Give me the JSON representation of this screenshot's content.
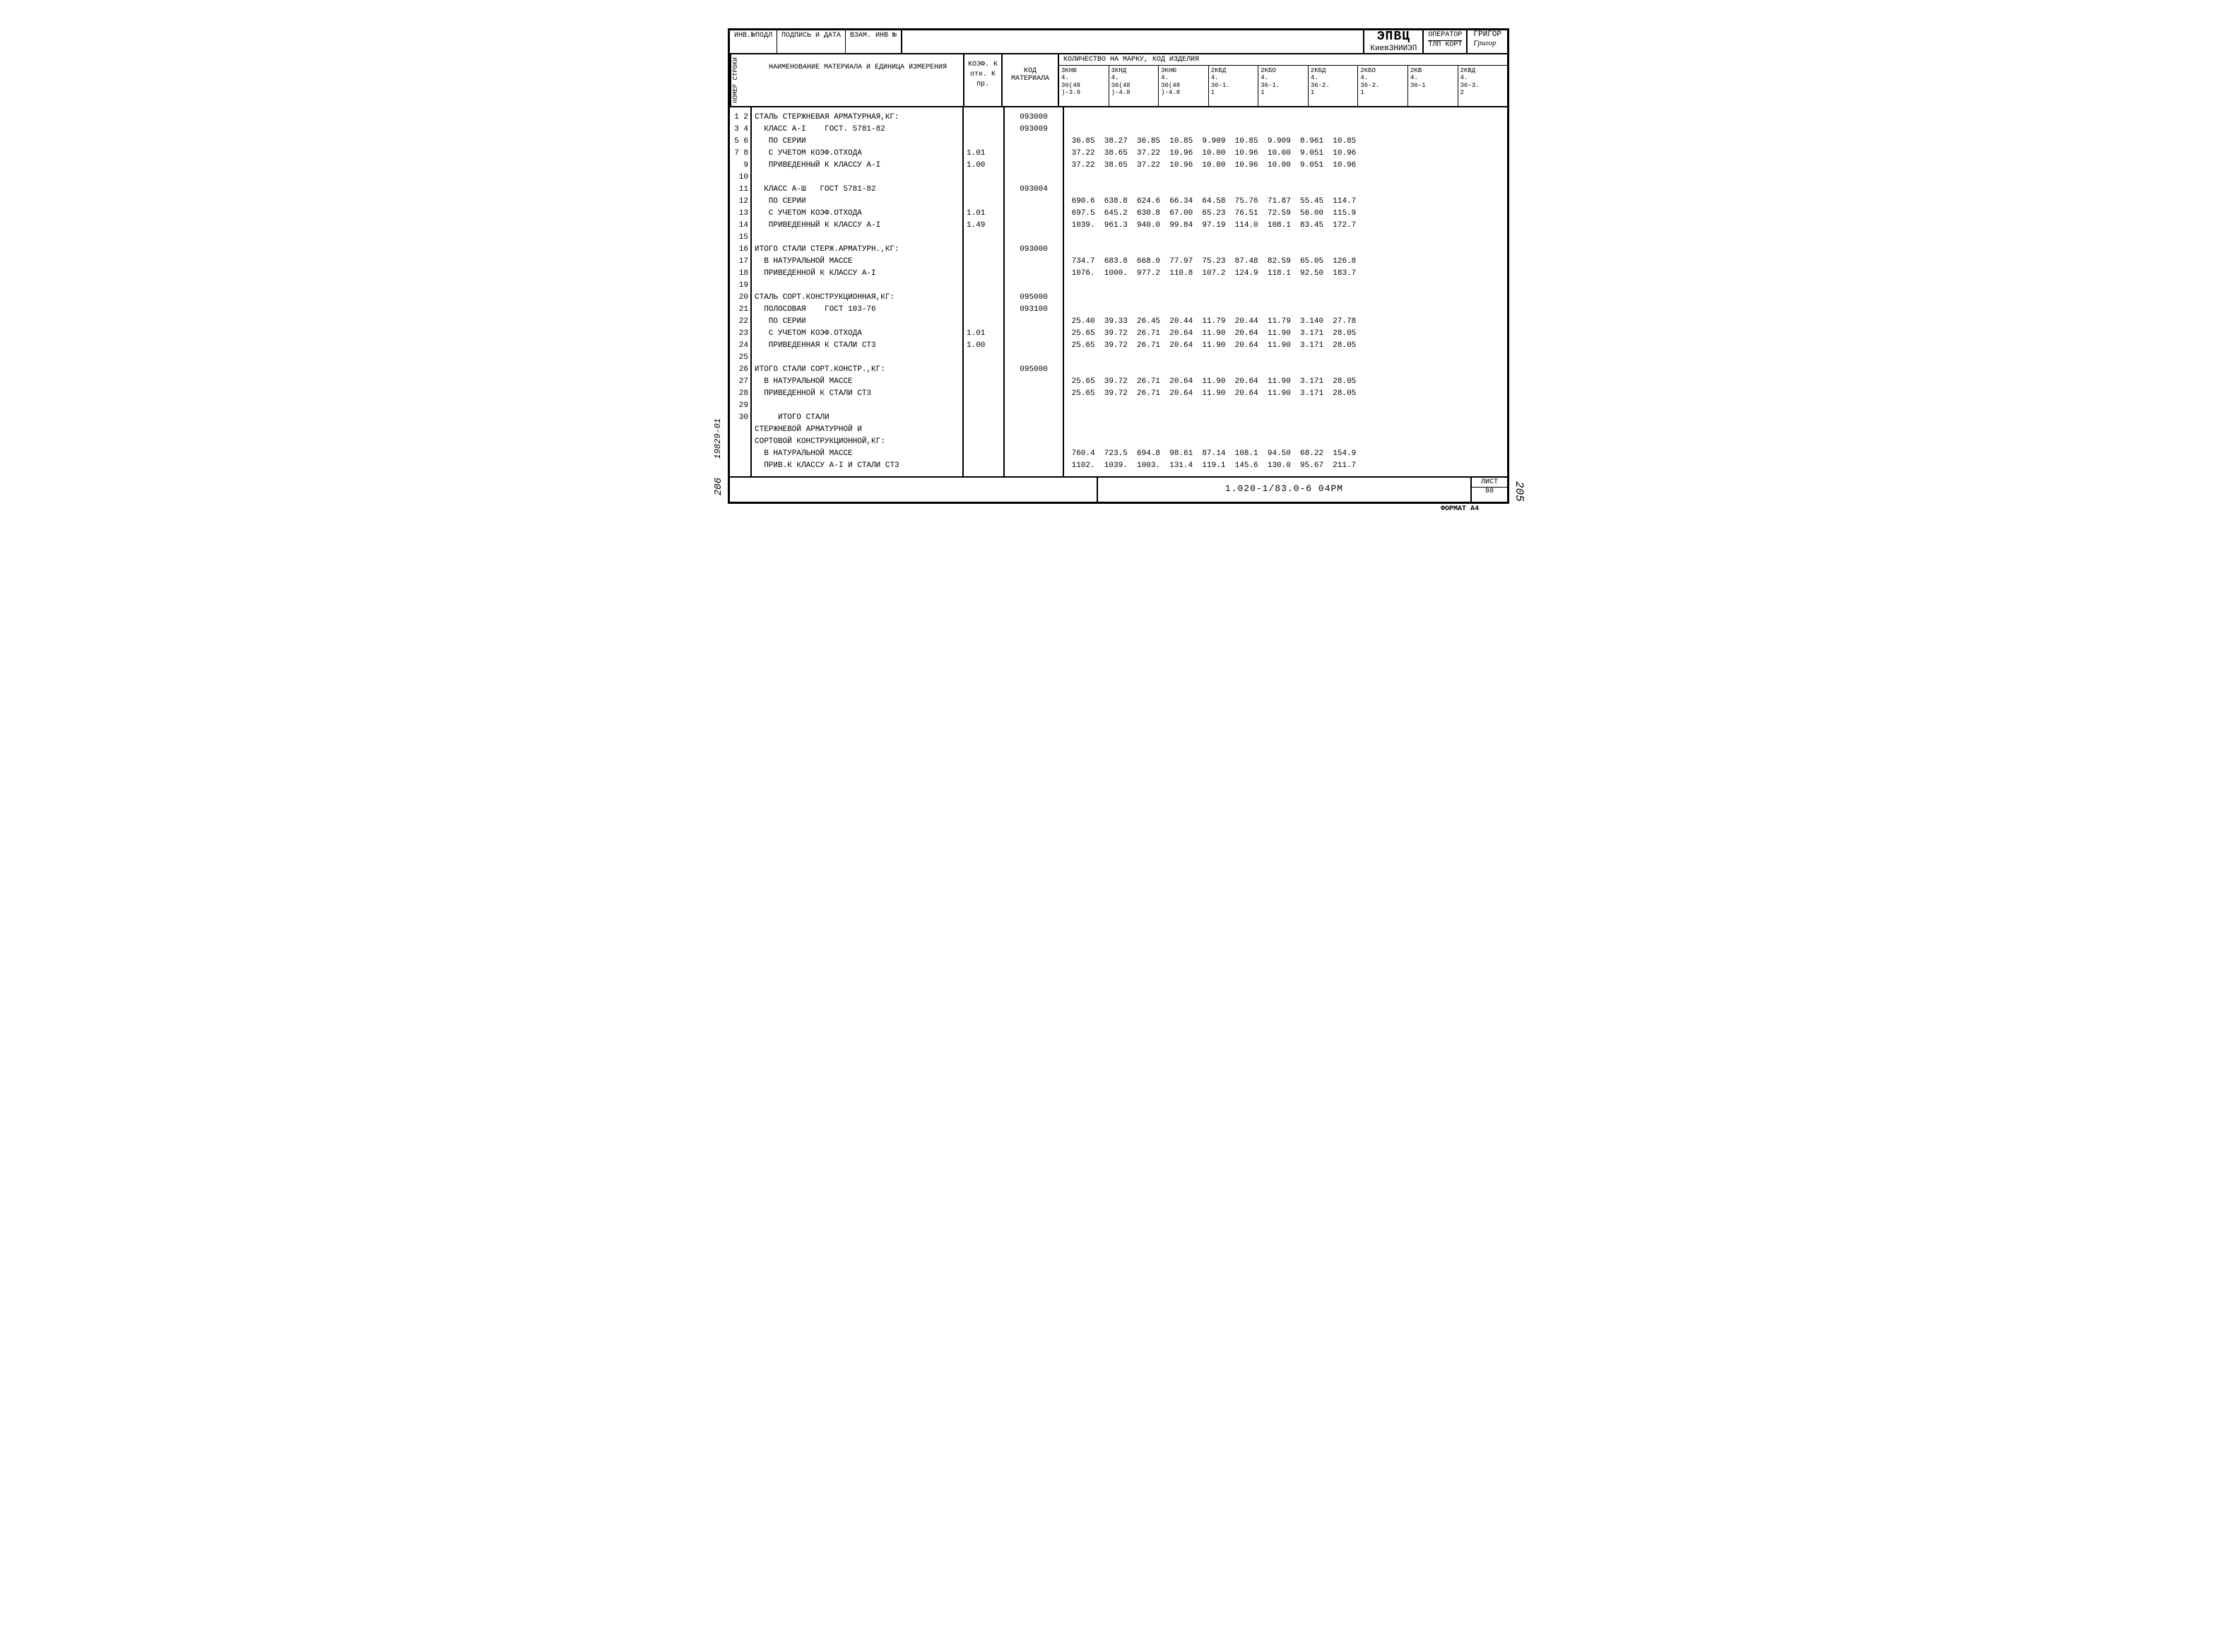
{
  "header": {
    "inv_podl": "ИНВ.№ПОДЛ",
    "sign_date": "ПОДПИСЬ И ДАТА",
    "vzam_inv": "ВЗАМ. ИНВ №",
    "epvc": "ЭПВЦ",
    "epvc_sub": "КиевЗНИИЭП",
    "operator": "ОПЕРАТОР",
    "tlp": "ТЛП КОРТ",
    "name": "ГРИГОР",
    "signature": "Григор"
  },
  "columns": {
    "rownum": "НОМЕР СТРОКИ",
    "name": "НАИМЕНОВАНИЕ  МАТЕРИАЛА  И\n\nЕДИНИЦА ИЗМЕРЕНИЯ",
    "coef": "КОЭФ.\nК отк.\nК пр.",
    "code": "КОД\nМАТЕРИАЛА",
    "qty_title": "КОЛИЧЕСТВО НА МАРКУ, КОД ИЗДЕЛИЯ",
    "qty": [
      "3КНЮ\n4.\n36(48\n)-3.9",
      "3КНД\n4.\n36(48\n)-4.8",
      "3КНЮ\n4.\n36(48\n)-4.8",
      "2КБД\n4.\n36-1.\n1",
      "2КБО\n4.\n36-1.\n1",
      "2КБД\n4.\n36-2.\n1",
      "2КБО\n4.\n36-2.\n1",
      "2КВ\n4.\n36-1",
      "2КВД\n4.\n36-3.\n2"
    ]
  },
  "rows": [
    {
      "n": "1",
      "name": "СТАЛЬ СТЕРЖНЕВАЯ АРМАТУРНАЯ,КГ:",
      "coef": "",
      "code": "093000",
      "v": [
        "",
        "",
        "",
        "",
        "",
        "",
        "",
        "",
        ""
      ]
    },
    {
      "n": "2",
      "name": "  КЛАСС А-I    ГОСТ. 5781-82",
      "coef": "",
      "code": "093009",
      "v": [
        "",
        "",
        "",
        "",
        "",
        "",
        "",
        "",
        ""
      ]
    },
    {
      "n": "3",
      "name": "   ПО СЕРИИ",
      "coef": "",
      "code": "",
      "v": [
        "36.85",
        "38.27",
        "36.85",
        "10.85",
        "9.909",
        "10.85",
        "9.909",
        "8.961",
        "10.85"
      ]
    },
    {
      "n": "4",
      "name": "   С УЧЕТОМ КОЭФ.ОТХОДА",
      "coef": "1.01",
      "code": "",
      "v": [
        "37.22",
        "38.65",
        "37.22",
        "10.96",
        "10.00",
        "10.96",
        "10.00",
        "9.051",
        "10.96"
      ]
    },
    {
      "n": "5",
      "name": "   ПРИВЕДЕННЫЙ К КЛАССУ А-I",
      "coef": "1.00",
      "code": "",
      "v": [
        "37.22",
        "38.65",
        "37.22",
        "10.96",
        "10.00",
        "10.96",
        "10.00",
        "9.051",
        "10.96"
      ]
    },
    {
      "n": "6",
      "name": "",
      "coef": "",
      "code": "",
      "v": [
        "",
        "",
        "",
        "",
        "",
        "",
        "",
        "",
        ""
      ]
    },
    {
      "n": "7",
      "name": "  КЛАСС А-Ш   ГОСТ 5781-82",
      "coef": "",
      "code": "093004",
      "v": [
        "",
        "",
        "",
        "",
        "",
        "",
        "",
        "",
        ""
      ]
    },
    {
      "n": "8",
      "name": "   ПО СЕРИИ",
      "coef": "",
      "code": "",
      "v": [
        "690.6",
        "638.8",
        "624.6",
        "66.34",
        "64.58",
        "75.76",
        "71.87",
        "55.45",
        "114.7"
      ]
    },
    {
      "n": "9",
      "name": "   С УЧЕТОМ КОЭФ.ОТХОДА",
      "coef": "1.01",
      "code": "",
      "v": [
        "697.5",
        "645.2",
        "630.8",
        "67.00",
        "65.23",
        "76.51",
        "72.59",
        "56.00",
        "115.9"
      ]
    },
    {
      "n": "10",
      "name": "   ПРИВЕДЕННЫЙ К КЛАССУ А-I",
      "coef": "1.49",
      "code": "",
      "v": [
        "1039.",
        "961.3",
        "940.0",
        "99.84",
        "97.19",
        "114.0",
        "108.1",
        "83.45",
        "172.7"
      ]
    },
    {
      "n": "11",
      "name": "",
      "coef": "",
      "code": "",
      "v": [
        "",
        "",
        "",
        "",
        "",
        "",
        "",
        "",
        ""
      ]
    },
    {
      "n": "12",
      "name": "ИТОГО СТАЛИ СТЕРЖ.АРМАТУРН.,КГ:",
      "coef": "",
      "code": "093000",
      "v": [
        "",
        "",
        "",
        "",
        "",
        "",
        "",
        "",
        ""
      ]
    },
    {
      "n": "13",
      "name": "  В НАТУРАЛЬНОЙ МАССЕ",
      "coef": "",
      "code": "",
      "v": [
        "734.7",
        "683.8",
        "668.0",
        "77.97",
        "75.23",
        "87.48",
        "82.59",
        "65.05",
        "126.8"
      ]
    },
    {
      "n": "14",
      "name": "  ПРИВЕДЕННОЙ К КЛАССУ А-I",
      "coef": "",
      "code": "",
      "v": [
        "1076.",
        "1000.",
        "977.2",
        "110.8",
        "107.2",
        "124.9",
        "118.1",
        "92.50",
        "183.7"
      ]
    },
    {
      "n": "15",
      "name": "",
      "coef": "",
      "code": "",
      "v": [
        "",
        "",
        "",
        "",
        "",
        "",
        "",
        "",
        ""
      ]
    },
    {
      "n": "16",
      "name": "СТАЛЬ СОРТ.КОНСТРУКЦИОННАЯ,КГ:",
      "coef": "",
      "code": "095000",
      "v": [
        "",
        "",
        "",
        "",
        "",
        "",
        "",
        "",
        ""
      ]
    },
    {
      "n": "17",
      "name": "  ПОЛОСОВАЯ    ГОСТ 103-76",
      "coef": "",
      "code": "093100",
      "v": [
        "",
        "",
        "",
        "",
        "",
        "",
        "",
        "",
        ""
      ]
    },
    {
      "n": "18",
      "name": "   ПО СЕРИИ",
      "coef": "",
      "code": "",
      "v": [
        "25.40",
        "39.33",
        "26.45",
        "20.44",
        "11.79",
        "20.44",
        "11.79",
        "3.140",
        "27.78"
      ]
    },
    {
      "n": "19",
      "name": "   С УЧЕТОМ КОЭФ.ОТХОДА",
      "coef": "1.01",
      "code": "",
      "v": [
        "25.65",
        "39.72",
        "26.71",
        "20.64",
        "11.90",
        "20.64",
        "11.90",
        "3.171",
        "28.05"
      ]
    },
    {
      "n": "20",
      "name": "   ПРИВЕДЕННАЯ К СТАЛИ СТ3",
      "coef": "1.00",
      "code": "",
      "v": [
        "25.65",
        "39.72",
        "26.71",
        "20.64",
        "11.90",
        "20.64",
        "11.90",
        "3.171",
        "28.05"
      ]
    },
    {
      "n": "21",
      "name": "",
      "coef": "",
      "code": "",
      "v": [
        "",
        "",
        "",
        "",
        "",
        "",
        "",
        "",
        ""
      ]
    },
    {
      "n": "22",
      "name": "ИТОГО СТАЛИ СОРТ.КОНСТР.,КГ:",
      "coef": "",
      "code": "095000",
      "v": [
        "",
        "",
        "",
        "",
        "",
        "",
        "",
        "",
        ""
      ]
    },
    {
      "n": "23",
      "name": "  В НАТУРАЛЬНОЙ МАССЕ",
      "coef": "",
      "code": "",
      "v": [
        "25.65",
        "39.72",
        "26.71",
        "20.64",
        "11.90",
        "20.64",
        "11.90",
        "3.171",
        "28.05"
      ]
    },
    {
      "n": "24",
      "name": "  ПРИВЕДЕННОЙ К СТАЛИ СТ3",
      "coef": "",
      "code": "",
      "v": [
        "25.65",
        "39.72",
        "26.71",
        "20.64",
        "11.90",
        "20.64",
        "11.90",
        "3.171",
        "28.05"
      ]
    },
    {
      "n": "25",
      "name": "",
      "coef": "",
      "code": "",
      "v": [
        "",
        "",
        "",
        "",
        "",
        "",
        "",
        "",
        ""
      ]
    },
    {
      "n": "26",
      "name": "     ИТОГО СТАЛИ",
      "coef": "",
      "code": "",
      "v": [
        "",
        "",
        "",
        "",
        "",
        "",
        "",
        "",
        ""
      ]
    },
    {
      "n": "27",
      "name": "СТЕРЖНЕВОЙ АРМАТУРНОЙ И",
      "coef": "",
      "code": "",
      "v": [
        "",
        "",
        "",
        "",
        "",
        "",
        "",
        "",
        ""
      ]
    },
    {
      "n": "28",
      "name": "СОРТОВОЙ КОНСТРУКЦИОННОЙ,КГ:",
      "coef": "",
      "code": "",
      "v": [
        "",
        "",
        "",
        "",
        "",
        "",
        "",
        "",
        ""
      ]
    },
    {
      "n": "29",
      "name": "  В НАТУРАЛЬНОЙ МАССЕ",
      "coef": "",
      "code": "",
      "v": [
        "760.4",
        "723.5",
        "694.8",
        "98.61",
        "87.14",
        "108.1",
        "94.50",
        "68.22",
        "154.9"
      ]
    },
    {
      "n": "30",
      "name": "  ПРИВ.К КЛАССУ А-I И СТАЛИ СТ3",
      "coef": "",
      "code": "",
      "v": [
        "1102.",
        "1039.",
        "1003.",
        "131.4",
        "119.1",
        "145.6",
        "130.0",
        "95.67",
        "211.7"
      ]
    }
  ],
  "footer": {
    "doc": "1.020-1/83.0-6 04РМ",
    "list_label": "ЛИСТ",
    "list_num": "80"
  },
  "side": {
    "a": "19829-01",
    "b": "206",
    "page": "205",
    "format": "ФОРМАТ А4"
  }
}
